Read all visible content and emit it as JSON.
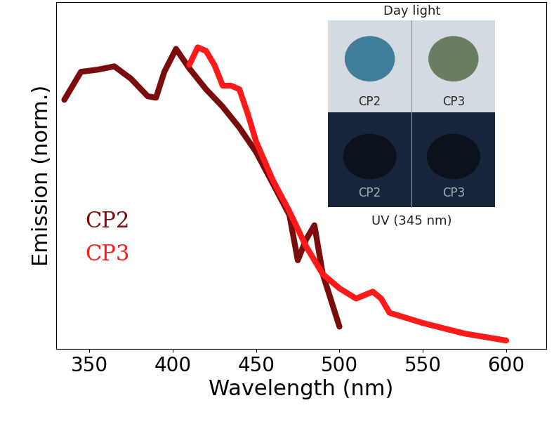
{
  "chart_data": {
    "type": "line",
    "x_label": "Wavelength (nm)",
    "y_label": "Emission (norm.)",
    "series": [
      {
        "name": "CP2",
        "color": "#7a0c0c",
        "x": [
          335,
          345,
          355,
          365,
          375,
          385,
          390,
          395,
          402,
          410,
          420,
          430,
          440,
          450,
          460,
          470,
          475,
          480,
          485,
          490,
          500
        ],
        "values": [
          0.826,
          0.919,
          0.926,
          0.937,
          0.896,
          0.838,
          0.833,
          0.919,
          0.995,
          0.93,
          0.861,
          0.803,
          0.734,
          0.653,
          0.549,
          0.444,
          0.294,
          0.363,
          0.41,
          0.248,
          0.074
        ]
      },
      {
        "name": "CP3",
        "color": "#ff1a1a",
        "x": [
          410,
          415,
          420,
          425,
          430,
          435,
          440,
          445,
          450,
          460,
          470,
          480,
          490,
          500,
          510,
          520,
          525,
          530,
          550,
          575,
          600
        ],
        "values": [
          0.942,
          1.0,
          0.988,
          0.942,
          0.873,
          0.873,
          0.861,
          0.78,
          0.688,
          0.56,
          0.456,
          0.34,
          0.248,
          0.201,
          0.167,
          0.19,
          0.167,
          0.12,
          0.086,
          0.051,
          0.028
        ]
      }
    ],
    "xlim": [
      330,
      624
    ],
    "xticks": [
      350,
      400,
      450,
      500,
      550,
      600
    ],
    "ylim": [
      0,
      1.15
    ],
    "yticks": [],
    "tick_labels": "x",
    "legend": "center left",
    "inset": {
      "title": "Day light",
      "caption": "UV (345 nm)",
      "labels": [
        "CP2",
        "CP3"
      ]
    }
  }
}
